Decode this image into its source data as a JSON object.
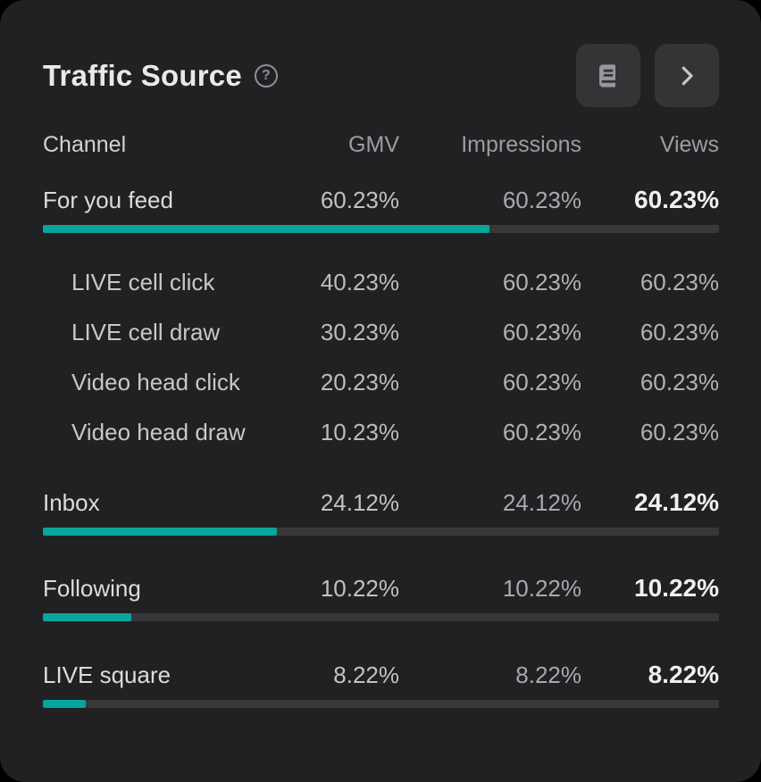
{
  "colors": {
    "page_background": "#000000",
    "card_background": "#212123",
    "accent": "#08a59d",
    "bar_track": "#38383a"
  },
  "card": {
    "title": "Traffic Source",
    "help_icon": "question-mark-circle",
    "help_glyph": "?",
    "header_buttons": [
      {
        "name": "report",
        "icon": "book-icon"
      },
      {
        "name": "expand",
        "icon": "chevron-right-icon"
      }
    ]
  },
  "table": {
    "columns": [
      "Channel",
      "GMV",
      "Impressions",
      "Views"
    ],
    "rows": [
      {
        "label": "For you feed",
        "gmv": "60.23%",
        "impressions": "60.23%",
        "views": "60.23%",
        "bar_fill_percent": 66,
        "children": [
          {
            "label": "LIVE cell click",
            "gmv": "40.23%",
            "impressions": "60.23%",
            "views": "60.23%"
          },
          {
            "label": "LIVE cell draw",
            "gmv": "30.23%",
            "impressions": "60.23%",
            "views": "60.23%"
          },
          {
            "label": "Video head click",
            "gmv": "20.23%",
            "impressions": "60.23%",
            "views": "60.23%"
          },
          {
            "label": "Video head draw",
            "gmv": "10.23%",
            "impressions": "60.23%",
            "views": "60.23%"
          }
        ]
      },
      {
        "label": "Inbox",
        "gmv": "24.12%",
        "impressions": "24.12%",
        "views": "24.12%",
        "bar_fill_percent": 34.6
      },
      {
        "label": "Following",
        "gmv": "10.22%",
        "impressions": "10.22%",
        "views": "10.22%",
        "bar_fill_percent": 13.1
      },
      {
        "label": "LIVE square",
        "gmv": "8.22%",
        "impressions": "8.22%",
        "views": "8.22%",
        "bar_fill_percent": 6.3
      }
    ]
  }
}
